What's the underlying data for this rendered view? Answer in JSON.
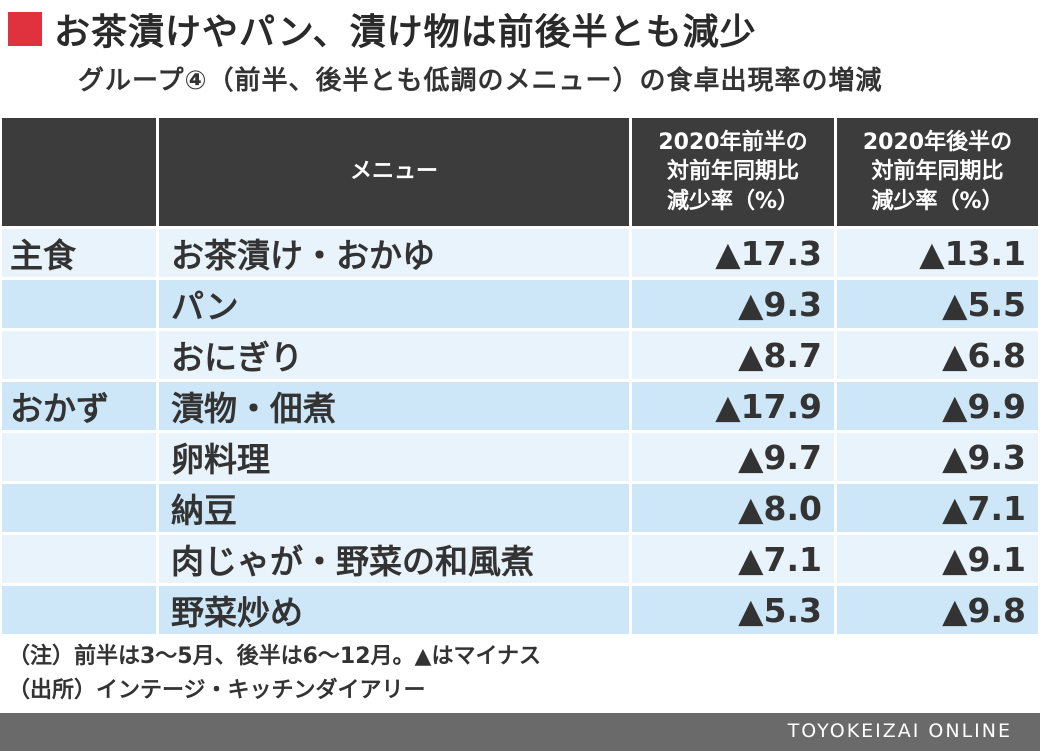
{
  "title": "お茶漬けやパン、漬け物は前後半とも減少",
  "subtitle": "グループ④（前半、後半とも低調のメニュー）の食卓出現率の増減",
  "table": {
    "headers": {
      "category": "",
      "menu": "メニュー",
      "first_half": [
        "2020年前半の",
        "対前年同期比",
        "減少率（%）"
      ],
      "second_half": [
        "2020年後半の",
        "対前年同期比",
        "減少率（%）"
      ]
    },
    "rows": [
      {
        "category": "主食",
        "menu": "お茶漬け・おかゆ",
        "first": "▲17.3",
        "second": "▲13.1"
      },
      {
        "category": "",
        "menu": "パン",
        "first": "▲9.3",
        "second": "▲5.5"
      },
      {
        "category": "",
        "menu": "おにぎり",
        "first": "▲8.7",
        "second": "▲6.8"
      },
      {
        "category": "おかず",
        "menu": "漬物・佃煮",
        "first": "▲17.9",
        "second": "▲9.9"
      },
      {
        "category": "",
        "menu": "卵料理",
        "first": "▲9.7",
        "second": "▲9.3"
      },
      {
        "category": "",
        "menu": "納豆",
        "first": "▲8.0",
        "second": "▲7.1"
      },
      {
        "category": "",
        "menu": "肉じゃが・野菜の和風煮",
        "first": "▲7.1",
        "second": "▲9.1"
      },
      {
        "category": "",
        "menu": "野菜炒め",
        "first": "▲5.3",
        "second": "▲9.8"
      }
    ]
  },
  "notes": {
    "note": "（注）前半は3～5月、後半は6～12月。▲はマイナス",
    "source": "（出所）インテージ・キッチンダイアリー"
  },
  "footer": "TOYOKEIZAI ONLINE",
  "colors": {
    "accent": "#e0313f",
    "header_bg": "#3c3c3c",
    "row_light": "#e9f3fb",
    "row_dark": "#cde7f8",
    "footer_bg": "#6a6a6a"
  }
}
